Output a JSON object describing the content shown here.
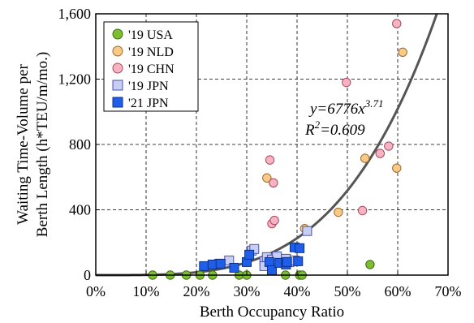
{
  "chart_data": {
    "type": "scatter",
    "xlabel": "Berth Occupancy Ratio",
    "ylabel_line1": "Waiting Time-Volume per",
    "ylabel_line2": "Berth Length (h*TEU/m/mo.)",
    "xlim": [
      0,
      0.7
    ],
    "ylim": [
      0,
      1600
    ],
    "x_ticks": [
      0,
      0.1,
      0.2,
      0.3,
      0.4,
      0.5,
      0.6,
      0.7
    ],
    "x_tick_labels": [
      "0%",
      "10%",
      "20%",
      "30%",
      "40%",
      "50%",
      "60%",
      "70%"
    ],
    "y_ticks": [
      0,
      400,
      800,
      1200,
      1600
    ],
    "y_tick_labels": [
      "0",
      "400",
      "800",
      "1,200",
      "1,600"
    ],
    "grid": true,
    "grid_style": "dashed",
    "legend_position": "top-left",
    "fit": {
      "equation_prefix": "y=6776x",
      "equation_exponent": "3.71",
      "r2_prefix": "R",
      "r2_sup": "2",
      "r2_suffix": "=0.609",
      "a": 6776,
      "b": 3.71,
      "color": "#555555"
    },
    "series": [
      {
        "name": "'19 USA",
        "marker": "circle",
        "fill": "#7cbd32",
        "stroke": "#3f6b17",
        "points": [
          [
            0.113,
            0
          ],
          [
            0.148,
            0
          ],
          [
            0.18,
            0
          ],
          [
            0.207,
            0
          ],
          [
            0.232,
            0
          ],
          [
            0.285,
            0
          ],
          [
            0.3,
            0
          ],
          [
            0.377,
            0
          ],
          [
            0.405,
            0
          ],
          [
            0.41,
            0
          ],
          [
            0.545,
            65
          ]
        ]
      },
      {
        "name": "'19 NLD",
        "marker": "circle",
        "fill": "#f8c987",
        "stroke": "#9a6b2a",
        "points": [
          [
            0.34,
            595
          ],
          [
            0.415,
            285
          ],
          [
            0.482,
            385
          ],
          [
            0.535,
            715
          ],
          [
            0.598,
            655
          ],
          [
            0.61,
            1365
          ]
        ]
      },
      {
        "name": "'19 CHN",
        "marker": "circle",
        "fill": "#f7b3c2",
        "stroke": "#a8485e",
        "points": [
          [
            0.346,
            705
          ],
          [
            0.35,
            315
          ],
          [
            0.353,
            565
          ],
          [
            0.355,
            335
          ],
          [
            0.498,
            1180
          ],
          [
            0.53,
            395
          ],
          [
            0.565,
            745
          ],
          [
            0.582,
            790
          ],
          [
            0.598,
            1540
          ]
        ]
      },
      {
        "name": "'19 JPN",
        "marker": "square",
        "fill": "#c7cdf3",
        "stroke": "#4a54a8",
        "points": [
          [
            0.245,
            70
          ],
          [
            0.265,
            90
          ],
          [
            0.31,
            150
          ],
          [
            0.315,
            160
          ],
          [
            0.335,
            85
          ],
          [
            0.335,
            55
          ],
          [
            0.34,
            110
          ],
          [
            0.35,
            95
          ],
          [
            0.36,
            115
          ],
          [
            0.378,
            100
          ],
          [
            0.385,
            80
          ],
          [
            0.395,
            90
          ],
          [
            0.42,
            270
          ]
        ]
      },
      {
        "name": "'21 JPN",
        "marker": "square",
        "fill": "#1f5ee8",
        "stroke": "#0c2f8a",
        "points": [
          [
            0.215,
            55
          ],
          [
            0.232,
            65
          ],
          [
            0.248,
            70
          ],
          [
            0.275,
            45
          ],
          [
            0.3,
            80
          ],
          [
            0.305,
            125
          ],
          [
            0.345,
            80
          ],
          [
            0.35,
            30
          ],
          [
            0.365,
            75
          ],
          [
            0.378,
            65
          ],
          [
            0.38,
            80
          ],
          [
            0.395,
            170
          ],
          [
            0.402,
            85
          ],
          [
            0.405,
            165
          ]
        ]
      }
    ]
  }
}
